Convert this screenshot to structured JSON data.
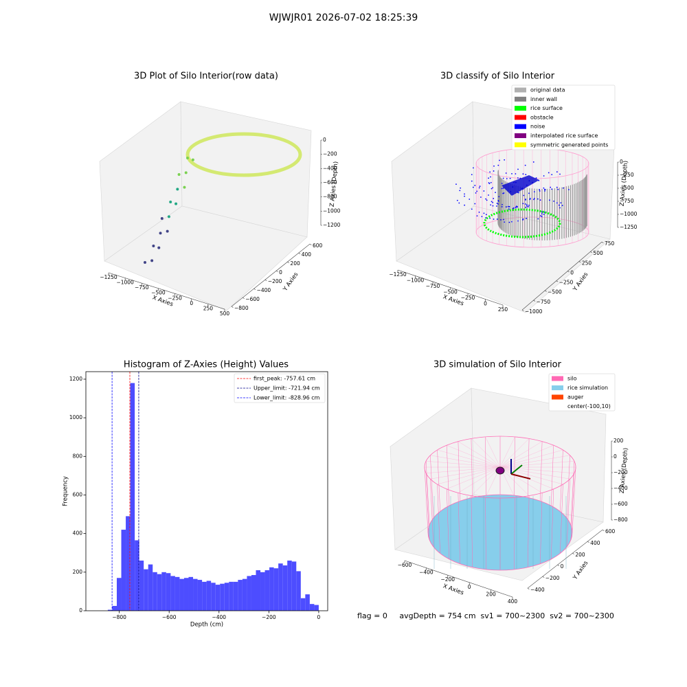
{
  "title": "WJWJR01 2026-07-02 18:25:39",
  "chart_data": [
    {
      "type": "scatter3d",
      "title": "3D Plot of Silo Interior(row data)",
      "xlabel": "X Axies",
      "ylabel": "Y Axies",
      "zlabel": "Z Axies (Depth)",
      "xticks": [
        {
          "value": -1250,
          "label": "−1250"
        },
        {
          "value": -1000,
          "label": "−1000"
        },
        {
          "value": -750,
          "label": "−750"
        },
        {
          "value": -500,
          "label": "−500"
        },
        {
          "value": -250,
          "label": "−250"
        },
        0,
        250,
        500
      ],
      "yticks": [
        {
          "value": -800,
          "label": "−800"
        },
        {
          "value": -600,
          "label": "−600"
        },
        {
          "value": -400,
          "label": "−400"
        },
        {
          "value": -200,
          "label": "−200"
        },
        0,
        200,
        400,
        600
      ],
      "zticks": [
        0,
        {
          "value": -200,
          "label": "−200"
        },
        {
          "value": -400,
          "label": "−400"
        },
        {
          "value": -600,
          "label": "−600"
        },
        {
          "value": -800,
          "label": "−800"
        },
        {
          "value": -1000,
          "label": "−1000"
        },
        {
          "value": -1200,
          "label": "−1200"
        }
      ]
    },
    {
      "type": "scatter3d",
      "title": "3D classify of Silo Interior",
      "xlabel": "X Axies",
      "ylabel": "Y Axies",
      "zlabel": "Z Axies (Depth)",
      "xticks": [
        {
          "value": -1250,
          "label": "−1250"
        },
        {
          "value": -1000,
          "label": "−1000"
        },
        {
          "value": -750,
          "label": "−750"
        },
        {
          "value": -500,
          "label": "−500"
        },
        {
          "value": -250,
          "label": "−250"
        },
        0,
        250
      ],
      "yticks": [
        {
          "value": -1000,
          "label": "−1000"
        },
        {
          "value": -750,
          "label": "−750"
        },
        {
          "value": -500,
          "label": "−500"
        },
        {
          "value": -250,
          "label": "−250"
        },
        0,
        250,
        500,
        750
      ],
      "zticks": [
        0,
        {
          "value": -250,
          "label": "−250"
        },
        {
          "value": -500,
          "label": "−500"
        },
        {
          "value": -750,
          "label": "−750"
        },
        {
          "value": -1000,
          "label": "−1000"
        },
        {
          "value": -1250,
          "label": "−1250"
        }
      ],
      "legend": [
        {
          "name": "original data",
          "color": "#b0b0b0"
        },
        {
          "name": "inner wall",
          "color": "#808080"
        },
        {
          "name": "rice surface",
          "color": "#00ff00"
        },
        {
          "name": "obstacle",
          "color": "#ff0000"
        },
        {
          "name": "noise",
          "color": "#0000ff"
        },
        {
          "name": "interpolated rice surface",
          "color": "#800080"
        },
        {
          "name": "symmetric generated points",
          "color": "#ffff00"
        }
      ],
      "legend_loc": "upper right"
    },
    {
      "type": "histogram",
      "title": "Histogram of Z-Axies (Height) Values",
      "xlabel": "Depth (cm)",
      "ylabel": "Frequency",
      "color": "#4d4dff",
      "bins": [
        -846,
        -828,
        -810,
        -792,
        -774,
        -756,
        -738,
        -720,
        -702,
        -684,
        -666,
        -648,
        -630,
        -612,
        -594,
        -576,
        -558,
        -540,
        -522,
        -504,
        -486,
        -468,
        -450,
        -432,
        -414,
        -396,
        -378,
        -360,
        -342,
        -324,
        -306,
        -288,
        -270,
        -252,
        -234,
        -216,
        -198,
        -180,
        -162,
        -144,
        -126,
        -108,
        -90,
        -72,
        -54,
        -36,
        -18,
        0
      ],
      "counts": [
        5,
        25,
        170,
        420,
        490,
        1180,
        365,
        260,
        215,
        240,
        200,
        190,
        200,
        195,
        180,
        175,
        165,
        170,
        175,
        165,
        160,
        150,
        155,
        145,
        135,
        140,
        145,
        150,
        150,
        160,
        165,
        180,
        185,
        210,
        200,
        210,
        225,
        220,
        245,
        235,
        260,
        255,
        205,
        65,
        85,
        35,
        30
      ],
      "xlim": [
        -934,
        36
      ],
      "ylim": [
        0,
        1239
      ],
      "xticks": [
        {
          "value": -800,
          "label": "−800"
        },
        {
          "value": -600,
          "label": "−600"
        },
        {
          "value": -400,
          "label": "−400"
        },
        {
          "value": -200,
          "label": "−200"
        },
        0
      ],
      "yticks": [
        0,
        200,
        400,
        600,
        800,
        1000,
        1200
      ],
      "vlines": [
        {
          "label": "first_peak: -757.61 cm",
          "value": -757.61,
          "color": "#ff0000"
        },
        {
          "label": "Upper_limit: -721.94 cm",
          "value": -721.94,
          "color": "#00008b"
        },
        {
          "label": "Lower_limit: -828.96 cm",
          "value": -828.96,
          "color": "#0000ff"
        }
      ],
      "legend_loc": "upper right"
    },
    {
      "type": "surface3d",
      "title": "3D simulation of Silo Interior",
      "xlabel": "X Axies",
      "ylabel": "Y Axies",
      "zlabel": "Z Axies (Depth)",
      "xticks": [
        {
          "value": -600,
          "label": "−600"
        },
        {
          "value": -400,
          "label": "−400"
        },
        {
          "value": -200,
          "label": "−200"
        },
        0,
        200,
        400
      ],
      "yticks": [
        {
          "value": -400,
          "label": "−400"
        },
        {
          "value": -200,
          "label": "−200"
        },
        0,
        200,
        400,
        600
      ],
      "zticks": [
        200,
        0,
        {
          "value": -200,
          "label": "−200"
        },
        {
          "value": -400,
          "label": "−400"
        },
        {
          "value": -600,
          "label": "−600"
        },
        {
          "value": -800,
          "label": "−800"
        }
      ],
      "legend": [
        {
          "name": "silo",
          "color": "#ff69b4"
        },
        {
          "name": "rice simulation",
          "color": "#87ceeb"
        },
        {
          "name": "auger",
          "color": "#ff4500"
        },
        {
          "name": "center(-100,10)",
          "color": "#ffffff"
        }
      ],
      "legend_loc": "upper right",
      "annotation": "flag = 0     avgDepth = 754 cm  sv1 = 700~2300  sv2 = 700~2300"
    }
  ]
}
